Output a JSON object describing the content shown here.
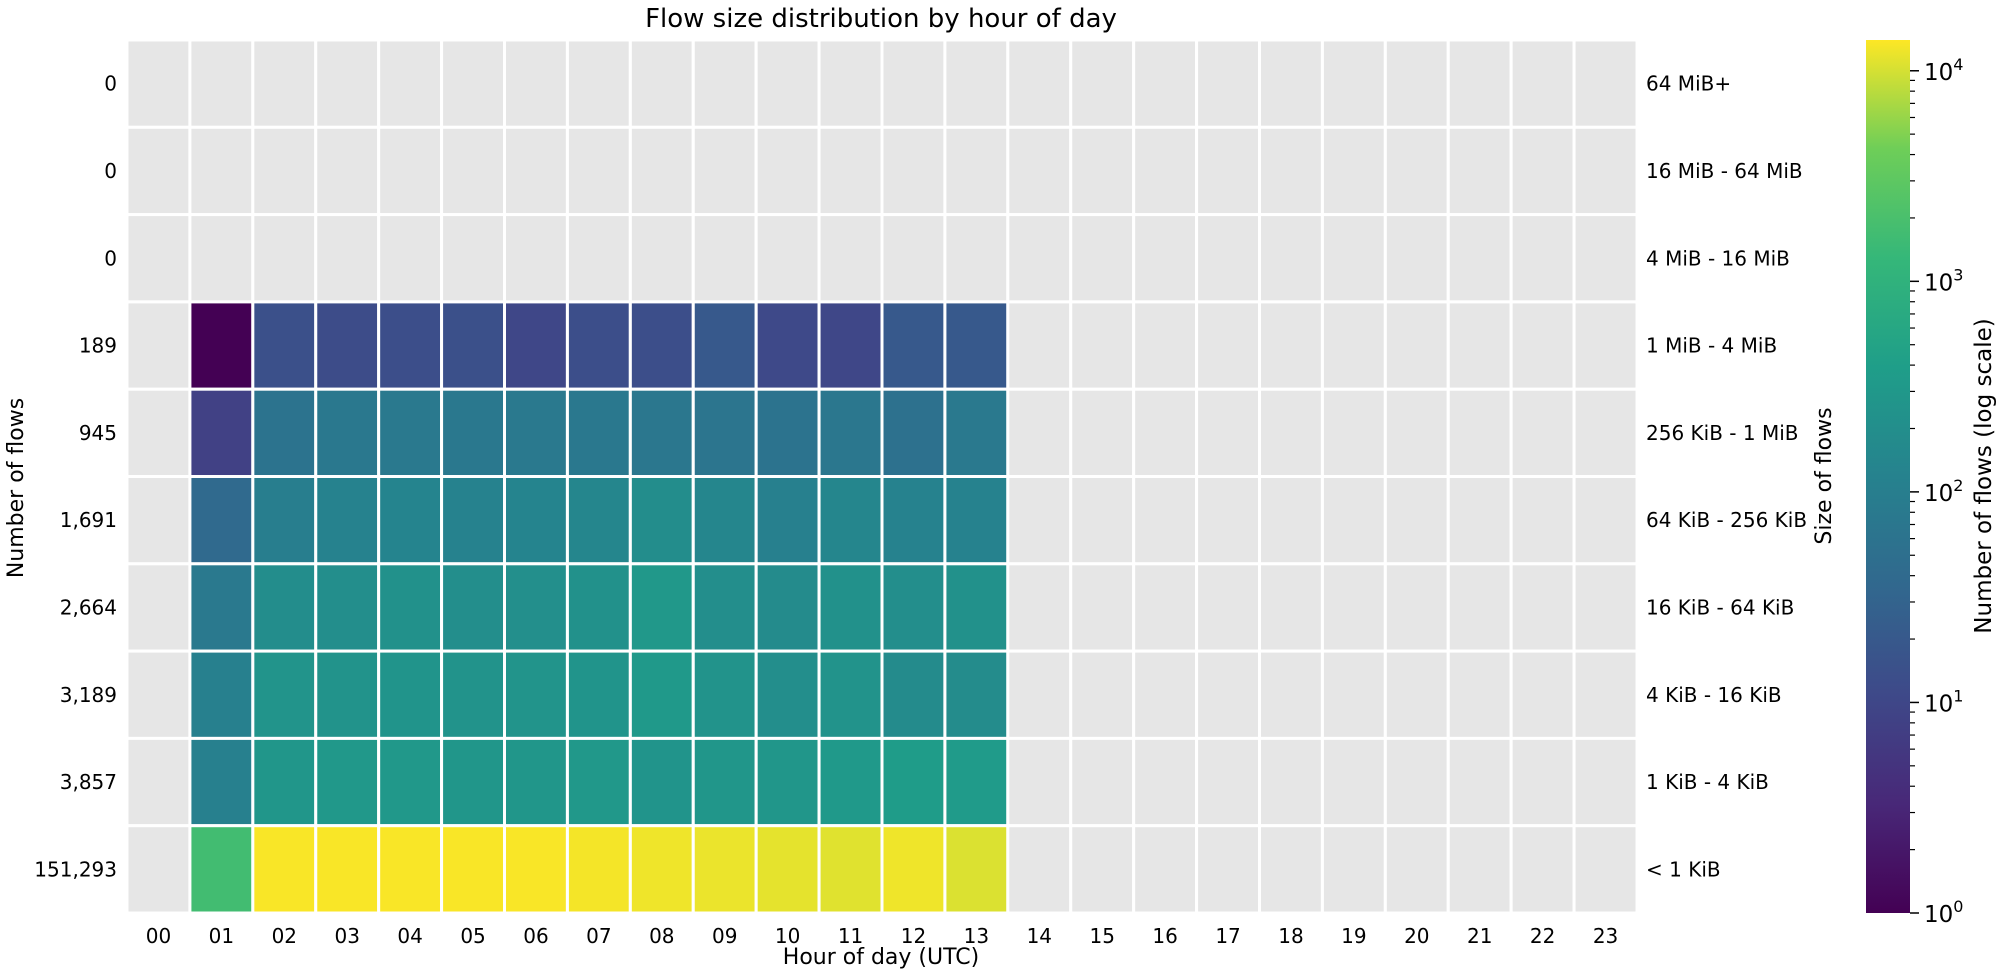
{
  "chart_data": {
    "type": "heatmap",
    "title": "Flow size distribution by hour of day",
    "xlabel": "Hour of day (UTC)",
    "ylabel_left": "Number of flows",
    "ylabel_right": "Size of flows",
    "colorbar_label": "Number of flows (log scale)",
    "colormap": "viridis",
    "scale": "log",
    "color_range": [
      1,
      14000
    ],
    "colorbar_ticks": [
      {
        "value": 1,
        "base": "10",
        "exp": "0"
      },
      {
        "value": 10,
        "base": "10",
        "exp": "1"
      },
      {
        "value": 100,
        "base": "10",
        "exp": "2"
      },
      {
        "value": 1000,
        "base": "10",
        "exp": "3"
      },
      {
        "value": 10000,
        "base": "10",
        "exp": "4"
      }
    ],
    "empty_color": "#e6e6e6",
    "grid_color": "#ffffff",
    "hours": [
      "00",
      "01",
      "02",
      "03",
      "04",
      "05",
      "06",
      "07",
      "08",
      "09",
      "10",
      "11",
      "12",
      "13",
      "14",
      "15",
      "16",
      "17",
      "18",
      "19",
      "20",
      "21",
      "22",
      "23"
    ],
    "size_bins": [
      "64 MiB+",
      "16 MiB - 64 MiB",
      "4 MiB - 16 MiB",
      "1 MiB - 4 MiB",
      "256 KiB - 1 MiB",
      "64 KiB - 256 KiB",
      "16 KiB - 64 KiB",
      "4 KiB - 16 KiB",
      "1 KiB - 4 KiB",
      "< 1 KiB"
    ],
    "row_totals": [
      "0",
      "0",
      "0",
      "189",
      "945",
      "1,691",
      "2,664",
      "3,189",
      "3,857",
      "151,293"
    ],
    "values": [
      [
        0,
        0,
        0,
        0,
        0,
        0,
        0,
        0,
        0,
        0,
        0,
        0,
        0,
        0,
        0,
        0,
        0,
        0,
        0,
        0,
        0,
        0,
        0,
        0
      ],
      [
        0,
        0,
        0,
        0,
        0,
        0,
        0,
        0,
        0,
        0,
        0,
        0,
        0,
        0,
        0,
        0,
        0,
        0,
        0,
        0,
        0,
        0,
        0,
        0
      ],
      [
        0,
        0,
        0,
        0,
        0,
        0,
        0,
        0,
        0,
        0,
        0,
        0,
        0,
        0,
        0,
        0,
        0,
        0,
        0,
        0,
        0,
        0,
        0,
        0
      ],
      [
        0,
        1,
        14,
        12,
        13,
        14,
        10,
        13,
        13,
        20,
        11,
        10,
        20,
        20,
        0,
        0,
        0,
        0,
        0,
        0,
        0,
        0,
        0,
        0
      ],
      [
        0,
        8,
        60,
        75,
        80,
        75,
        80,
        75,
        70,
        65,
        60,
        70,
        55,
        80,
        0,
        0,
        0,
        0,
        0,
        0,
        0,
        0,
        0,
        0
      ],
      [
        0,
        40,
        100,
        120,
        130,
        120,
        130,
        140,
        190,
        140,
        110,
        140,
        120,
        120,
        0,
        0,
        0,
        0,
        0,
        0,
        0,
        0,
        0,
        0
      ],
      [
        0,
        80,
        190,
        200,
        220,
        200,
        210,
        220,
        300,
        200,
        170,
        220,
        200,
        220,
        0,
        0,
        0,
        0,
        0,
        0,
        0,
        0,
        0,
        0
      ],
      [
        0,
        110,
        250,
        240,
        260,
        240,
        250,
        260,
        320,
        240,
        200,
        240,
        170,
        180,
        0,
        0,
        0,
        0,
        0,
        0,
        0,
        0,
        0,
        0
      ],
      [
        0,
        110,
        280,
        300,
        300,
        280,
        280,
        300,
        260,
        280,
        280,
        320,
        360,
        340,
        0,
        0,
        0,
        0,
        0,
        0,
        0,
        0,
        0,
        0
      ],
      [
        0,
        1700,
        13500,
        13500,
        13500,
        13500,
        13500,
        13000,
        12500,
        12000,
        11500,
        11000,
        12500,
        10500,
        0,
        0,
        0,
        0,
        0,
        0,
        0,
        0,
        0,
        0
      ]
    ]
  }
}
